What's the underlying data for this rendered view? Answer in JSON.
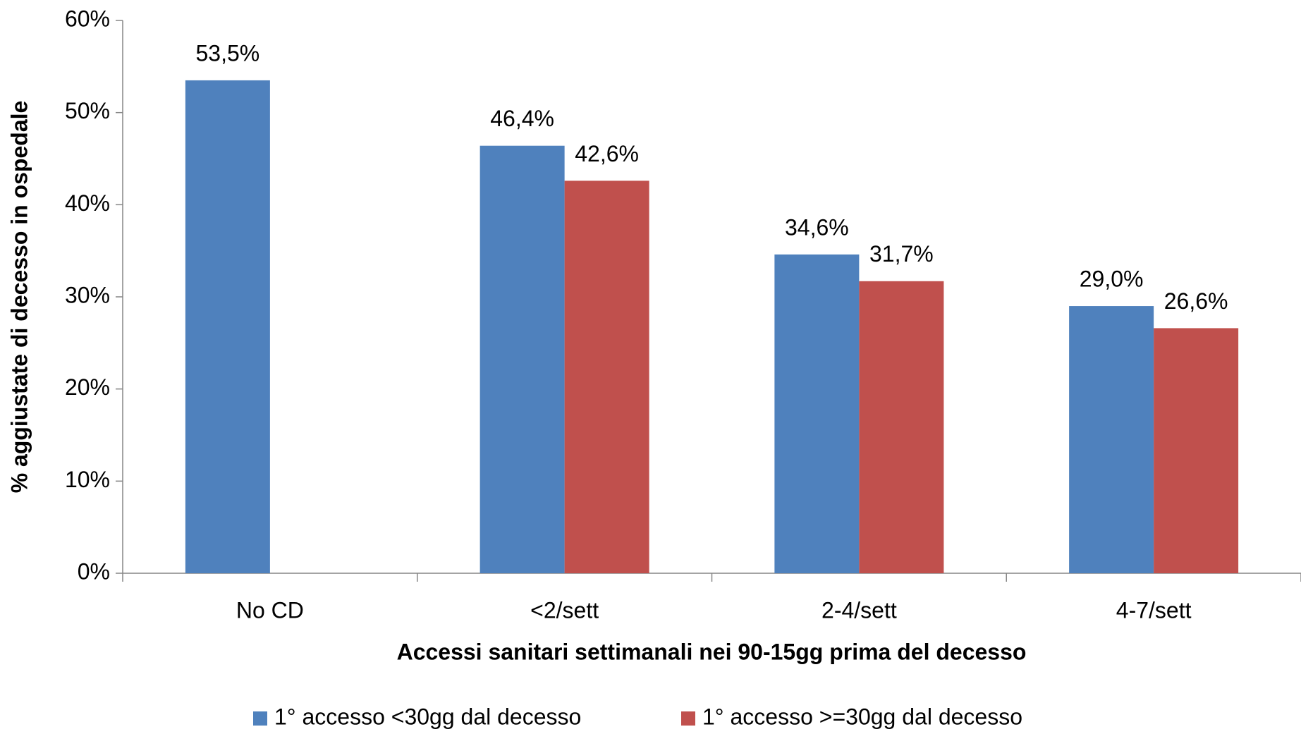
{
  "chart_data": {
    "type": "bar",
    "y_label": "% aggiustate di decesso in ospedale",
    "x_label": "Accessi sanitari settimanali nei 90-15gg prima del decesso",
    "categories": [
      "No CD",
      "<2/sett",
      "2-4/sett",
      "4-7/sett"
    ],
    "series": [
      {
        "name": "1° accesso <30gg dal decesso",
        "color": "#4f81bd",
        "values": [
          53.5,
          46.4,
          34.6,
          29.0
        ],
        "value_labels": [
          "53,5%",
          "46,4%",
          "34,6%",
          "29,0%"
        ]
      },
      {
        "name": "1° accesso >=30gg dal decesso",
        "color": "#c0504d",
        "values": [
          null,
          42.6,
          31.7,
          26.6
        ],
        "value_labels": [
          null,
          "42,6%",
          "31,7%",
          "26,6%"
        ]
      }
    ],
    "ylim": [
      0,
      60
    ],
    "yticks": [
      {
        "value": 0,
        "label": "0%"
      },
      {
        "value": 10,
        "label": "10%"
      },
      {
        "value": 20,
        "label": "20%"
      },
      {
        "value": 30,
        "label": "30%"
      },
      {
        "value": 40,
        "label": "40%"
      },
      {
        "value": 50,
        "label": "50%"
      },
      {
        "value": 60,
        "label": "60%"
      }
    ],
    "grid": false,
    "legend": "bottom"
  }
}
